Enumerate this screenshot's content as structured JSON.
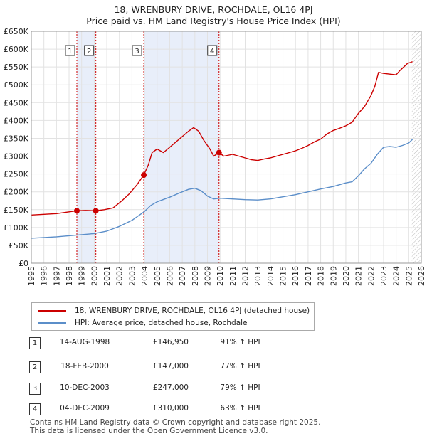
{
  "chart_data": {
    "type": "line",
    "title": "18, WRENBURY DRIVE, ROCHDALE, OL16 4PJ",
    "subtitle": "Price paid vs. HM Land Registry's House Price Index (HPI)",
    "xlim": [
      1995,
      2026
    ],
    "ylim": [
      0,
      650000
    ],
    "x_ticks": [
      1995,
      1996,
      1997,
      1998,
      1999,
      2000,
      2001,
      2002,
      2003,
      2004,
      2005,
      2006,
      2007,
      2008,
      2009,
      2010,
      2011,
      2012,
      2013,
      2014,
      2015,
      2016,
      2017,
      2018,
      2019,
      2020,
      2021,
      2022,
      2023,
      2024,
      2025,
      2026
    ],
    "y_ticks": [
      0,
      50000,
      100000,
      150000,
      200000,
      250000,
      300000,
      350000,
      400000,
      450000,
      500000,
      550000,
      600000,
      650000
    ],
    "y_tick_labels": [
      "£0",
      "£50K",
      "£100K",
      "£150K",
      "£200K",
      "£250K",
      "£300K",
      "£350K",
      "£400K",
      "£450K",
      "£500K",
      "£550K",
      "£600K",
      "£650K"
    ],
    "series": [
      {
        "name": "18, WRENBURY DRIVE, ROCHDALE, OL16 4PJ (detached house)",
        "color": "#cc0000",
        "x": [
          1995.0,
          1996.0,
          1997.0,
          1997.8,
          1998.62,
          1999.3,
          2000.13,
          2000.8,
          2001.5,
          2002.2,
          2002.8,
          2003.4,
          2003.94,
          2004.3,
          2004.6,
          2005.0,
          2005.5,
          2006.0,
          2006.5,
          2007.0,
          2007.5,
          2007.9,
          2008.3,
          2008.7,
          2009.2,
          2009.5,
          2009.92,
          2010.3,
          2011.0,
          2011.5,
          2012.0,
          2012.5,
          2013.0,
          2013.5,
          2014.0,
          2014.5,
          2015.0,
          2015.5,
          2016.0,
          2016.5,
          2017.0,
          2017.5,
          2018.0,
          2018.5,
          2019.0,
          2019.5,
          2020.0,
          2020.5,
          2021.0,
          2021.5,
          2022.0,
          2022.3,
          2022.6,
          2023.0,
          2023.5,
          2024.0,
          2024.3,
          2024.6,
          2024.9,
          2025.1,
          2025.3
        ],
        "values": [
          135000,
          137000,
          139000,
          143000,
          146950,
          148000,
          147000,
          150000,
          155000,
          175000,
          195000,
          220000,
          247000,
          275000,
          310000,
          320000,
          310000,
          325000,
          340000,
          355000,
          370000,
          380000,
          370000,
          345000,
          320000,
          300000,
          310000,
          300000,
          305000,
          300000,
          295000,
          290000,
          288000,
          292000,
          295000,
          300000,
          305000,
          310000,
          315000,
          322000,
          330000,
          340000,
          348000,
          362000,
          372000,
          378000,
          385000,
          395000,
          420000,
          440000,
          470000,
          495000,
          535000,
          532000,
          530000,
          528000,
          540000,
          550000,
          560000,
          562000,
          565000
        ]
      },
      {
        "name": "HPI: Average price, detached house, Rochdale",
        "color": "#5b8ec9",
        "x": [
          1995.0,
          1996.0,
          1997.0,
          1998.0,
          1999.0,
          2000.0,
          2001.0,
          2002.0,
          2003.0,
          2004.0,
          2004.5,
          2005.0,
          2006.0,
          2007.0,
          2007.5,
          2008.0,
          2008.5,
          2009.0,
          2009.5,
          2010.0,
          2011.0,
          2012.0,
          2013.0,
          2014.0,
          2015.0,
          2016.0,
          2017.0,
          2018.0,
          2019.0,
          2020.0,
          2020.5,
          2021.0,
          2021.5,
          2022.0,
          2022.5,
          2023.0,
          2023.5,
          2024.0,
          2024.5,
          2025.0,
          2025.3
        ],
        "values": [
          70000,
          72000,
          74000,
          77000,
          80000,
          83000,
          90000,
          103000,
          120000,
          145000,
          162000,
          172000,
          185000,
          200000,
          207000,
          210000,
          203000,
          188000,
          180000,
          182000,
          180000,
          178000,
          177000,
          180000,
          186000,
          192000,
          200000,
          208000,
          215000,
          225000,
          228000,
          245000,
          265000,
          280000,
          305000,
          325000,
          327000,
          325000,
          330000,
          337000,
          347000
        ]
      }
    ],
    "annotations": [
      {
        "label": "1",
        "x": 1998.62,
        "price": 146950
      },
      {
        "label": "2",
        "x": 2000.13,
        "price": 147000
      },
      {
        "label": "3",
        "x": 2003.94,
        "price": 247000
      },
      {
        "label": "4",
        "x": 2009.92,
        "price": 310000
      }
    ],
    "shaded_ranges": [
      [
        1998.62,
        2000.13
      ],
      [
        2003.94,
        2009.92
      ]
    ],
    "forecast_start": 2025.25
  },
  "legend": {
    "items": [
      {
        "label": "18, WRENBURY DRIVE, ROCHDALE, OL16 4PJ (detached house)",
        "color": "#cc0000"
      },
      {
        "label": "HPI: Average price, detached house, Rochdale",
        "color": "#5b8ec9"
      }
    ]
  },
  "transactions": [
    {
      "num": "1",
      "date": "14-AUG-1998",
      "price": "£146,950",
      "hpi": "91% ↑ HPI"
    },
    {
      "num": "2",
      "date": "18-FEB-2000",
      "price": "£147,000",
      "hpi": "77% ↑ HPI"
    },
    {
      "num": "3",
      "date": "10-DEC-2003",
      "price": "£247,000",
      "hpi": "79% ↑ HPI"
    },
    {
      "num": "4",
      "date": "04-DEC-2009",
      "price": "£310,000",
      "hpi": "63% ↑ HPI"
    }
  ],
  "footer": {
    "line1": "Contains HM Land Registry data © Crown copyright and database right 2025.",
    "line2": "This data is licensed under the Open Government Licence v3.0."
  }
}
